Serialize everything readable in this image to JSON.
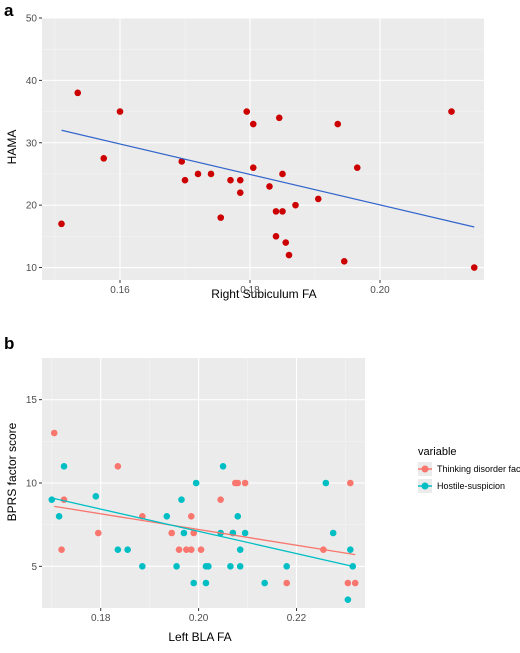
{
  "chart_data": [
    {
      "panel_label": "a",
      "type": "scatter",
      "title": "",
      "xlabel": "Right Subiculum FA",
      "ylabel": "HAMA",
      "xlim": [
        0.148,
        0.216
      ],
      "ylim": [
        8,
        50
      ],
      "xticks": [
        "0.16",
        "0.18",
        "0.20"
      ],
      "xtick_values": [
        0.16,
        0.18,
        0.2
      ],
      "yticks": [
        "10",
        "20",
        "30",
        "40",
        "50"
      ],
      "ytick_values": [
        10,
        20,
        30,
        40,
        50
      ],
      "grid": true,
      "legend": null,
      "series": [
        {
          "color": "#cc0000",
          "points": [
            [
              0.151,
              17
            ],
            [
              0.1535,
              38
            ],
            [
              0.1575,
              27.5
            ],
            [
              0.16,
              35
            ],
            [
              0.1695,
              27
            ],
            [
              0.17,
              24
            ],
            [
              0.172,
              25
            ],
            [
              0.174,
              25
            ],
            [
              0.1755,
              18
            ],
            [
              0.177,
              24
            ],
            [
              0.1785,
              24
            ],
            [
              0.1785,
              22
            ],
            [
              0.1795,
              35
            ],
            [
              0.1805,
              33
            ],
            [
              0.1805,
              26
            ],
            [
              0.183,
              23
            ],
            [
              0.184,
              19
            ],
            [
              0.184,
              15
            ],
            [
              0.1845,
              34
            ],
            [
              0.185,
              25
            ],
            [
              0.185,
              19
            ],
            [
              0.1855,
              14
            ],
            [
              0.186,
              12
            ],
            [
              0.187,
              20
            ],
            [
              0.1905,
              21
            ],
            [
              0.1935,
              33
            ],
            [
              0.1945,
              11
            ],
            [
              0.1965,
              26
            ],
            [
              0.211,
              35
            ],
            [
              0.2145,
              10
            ]
          ],
          "fit_line": {
            "color": "#3366cc",
            "x": [
              0.151,
              0.2145
            ],
            "y": [
              32,
              16.5
            ]
          }
        }
      ]
    },
    {
      "panel_label": "b",
      "type": "scatter",
      "title": "",
      "xlabel": "Left BLA FA",
      "ylabel": "BPRS factor score",
      "xlim": [
        0.168,
        0.234
      ],
      "ylim": [
        2.5,
        17.5
      ],
      "xticks": [
        "0.18",
        "0.20",
        "0.22"
      ],
      "xtick_values": [
        0.18,
        0.2,
        0.22
      ],
      "yticks": [
        "5",
        "10",
        "15"
      ],
      "ytick_values": [
        5,
        10,
        15
      ],
      "grid": true,
      "legend": {
        "title": "variable",
        "placement": "right",
        "entries": [
          "Thinking disorder factor",
          "Hostile-suspicion"
        ]
      },
      "series": [
        {
          "name": "Thinking disorder factor",
          "color": "#f8766d",
          "points": [
            [
              0.1705,
              13
            ],
            [
              0.172,
              6
            ],
            [
              0.1725,
              9
            ],
            [
              0.1795,
              7
            ],
            [
              0.1835,
              11
            ],
            [
              0.1885,
              8
            ],
            [
              0.1945,
              7
            ],
            [
              0.196,
              6
            ],
            [
              0.1975,
              6
            ],
            [
              0.1985,
              8
            ],
            [
              0.1985,
              6
            ],
            [
              0.199,
              7
            ],
            [
              0.2005,
              6
            ],
            [
              0.2045,
              9
            ],
            [
              0.207,
              7
            ],
            [
              0.2075,
              10
            ],
            [
              0.208,
              10
            ],
            [
              0.2095,
              10
            ],
            [
              0.218,
              4
            ],
            [
              0.2255,
              6
            ],
            [
              0.2305,
              4
            ],
            [
              0.231,
              10
            ],
            [
              0.232,
              4
            ]
          ],
          "fit_line": {
            "color": "#f8766d",
            "x": [
              0.1705,
              0.232
            ],
            "y": [
              8.6,
              5.7
            ]
          }
        },
        {
          "name": "Hostile-suspicion",
          "color": "#00bfc4",
          "points": [
            [
              0.17,
              9
            ],
            [
              0.1715,
              8
            ],
            [
              0.1725,
              11
            ],
            [
              0.179,
              9.2
            ],
            [
              0.1835,
              6
            ],
            [
              0.1855,
              6
            ],
            [
              0.1885,
              5
            ],
            [
              0.1935,
              8
            ],
            [
              0.1955,
              5
            ],
            [
              0.1965,
              9
            ],
            [
              0.197,
              7
            ],
            [
              0.199,
              4
            ],
            [
              0.1995,
              10
            ],
            [
              0.2015,
              4
            ],
            [
              0.2015,
              5
            ],
            [
              0.202,
              5
            ],
            [
              0.2045,
              7
            ],
            [
              0.205,
              11
            ],
            [
              0.2065,
              5
            ],
            [
              0.207,
              7
            ],
            [
              0.208,
              8
            ],
            [
              0.2085,
              6
            ],
            [
              0.2085,
              5
            ],
            [
              0.2095,
              7
            ],
            [
              0.2135,
              4
            ],
            [
              0.218,
              5
            ],
            [
              0.226,
              10
            ],
            [
              0.2275,
              7
            ],
            [
              0.2305,
              3
            ],
            [
              0.231,
              6
            ],
            [
              0.2315,
              5
            ]
          ],
          "fit_line": {
            "color": "#00bfc4",
            "x": [
              0.17,
              0.2315
            ],
            "y": [
              9.1,
              5.0
            ]
          }
        }
      ]
    }
  ]
}
